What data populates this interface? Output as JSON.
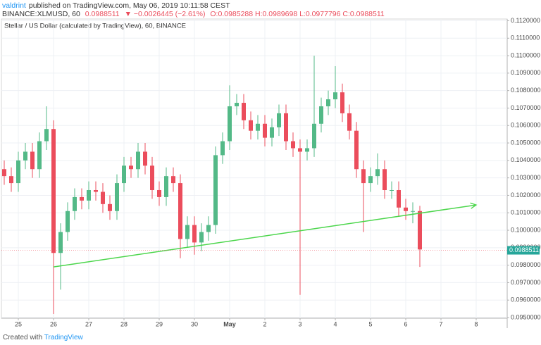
{
  "header": {
    "author": "valdrint",
    "published": "published on TradingView.com, May 06, 2019 10:11:58 CEST",
    "symbol": "BINANCE:XLMUSD, 60",
    "price": "0.0988511",
    "change": "▼ −0.0026445 (−2.61%)",
    "ohlc": "O:0.0985288 H:0.0989698 L:0.0977796 C:0.0988511"
  },
  "footer": {
    "prefix": "Created with",
    "brand": "TradingView"
  },
  "chart_data": {
    "type": "candlestick",
    "title": "Stellar / US Dollar (calculated by TradingView), 60, BINANCE",
    "up_color": "#53b987",
    "down_color": "#eb4d5c",
    "grid": true,
    "xlim": [
      -0.48,
      13.88
    ],
    "ylim": [
      0.09496,
      0.1121
    ],
    "xticks": [
      {
        "value": 0,
        "label": "25"
      },
      {
        "value": 1,
        "label": "26"
      },
      {
        "value": 2,
        "label": "27"
      },
      {
        "value": 3,
        "label": "28"
      },
      {
        "value": 4,
        "label": "29"
      },
      {
        "value": 5,
        "label": "30"
      },
      {
        "value": 6,
        "label": "May"
      },
      {
        "value": 7,
        "label": "2"
      },
      {
        "value": 8,
        "label": "3"
      },
      {
        "value": 9,
        "label": "4"
      },
      {
        "value": 10,
        "label": "5"
      },
      {
        "value": 11,
        "label": "6"
      },
      {
        "value": 12,
        "label": "7"
      },
      {
        "value": 13,
        "label": "8"
      }
    ],
    "yticks": [
      {
        "value": 0.095,
        "label": "0.0950000"
      },
      {
        "value": 0.096,
        "label": "0.0960000"
      },
      {
        "value": 0.097,
        "label": "0.0970000"
      },
      {
        "value": 0.098,
        "label": "0.0980000"
      },
      {
        "value": 0.099,
        "label": "0.0990000"
      },
      {
        "value": 0.1,
        "label": "0.1000000"
      },
      {
        "value": 0.101,
        "label": "0.1010000"
      },
      {
        "value": 0.102,
        "label": "0.1020000"
      },
      {
        "value": 0.103,
        "label": "0.1030000"
      },
      {
        "value": 0.104,
        "label": "0.1040000"
      },
      {
        "value": 0.105,
        "label": "0.1050000"
      },
      {
        "value": 0.106,
        "label": "0.1060000"
      },
      {
        "value": 0.107,
        "label": "0.1070000"
      },
      {
        "value": 0.108,
        "label": "0.1080000"
      },
      {
        "value": 0.109,
        "label": "0.1090000"
      },
      {
        "value": 0.11,
        "label": "0.1100000"
      },
      {
        "value": 0.111,
        "label": "0.1110000"
      },
      {
        "value": 0.112,
        "label": "0.1120000"
      }
    ],
    "last_price": 0.0988511,
    "x": [
      -0.4,
      -0.2,
      0,
      0.2,
      0.4,
      0.6,
      0.8,
      1,
      1.2,
      1.4,
      1.6,
      1.8,
      2,
      2.2,
      2.4,
      2.6,
      2.8,
      3,
      3.2,
      3.4,
      3.6,
      3.8,
      4,
      4.2,
      4.4,
      4.6,
      4.8,
      5,
      5.2,
      5.4,
      5.6,
      5.8,
      6,
      6.2,
      6.4,
      6.6,
      6.8,
      7,
      7.2,
      7.4,
      7.6,
      7.8,
      8,
      8.2,
      8.4,
      8.6,
      8.8,
      9,
      9.2,
      9.4,
      9.6,
      9.8,
      10,
      10.2,
      10.4,
      10.6,
      10.8,
      11,
      11.2,
      11.4
    ],
    "open": [
      0.1035,
      0.1031,
      0.1027,
      0.104,
      0.1045,
      0.1035,
      0.1051,
      0.1058,
      0.0987,
      0.0999,
      0.1011,
      0.1019,
      0.1017,
      0.1023,
      0.1022,
      0.1015,
      0.1011,
      0.1027,
      0.1037,
      0.1035,
      0.1045,
      0.1037,
      0.1023,
      0.1019,
      0.1031,
      0.1027,
      0.0995,
      0.1003,
      0.0993,
      0.0999,
      0.1003,
      0.1043,
      0.1051,
      0.1071,
      0.1073,
      0.1063,
      0.1057,
      0.1061,
      0.1053,
      0.1059,
      0.1067,
      0.1051,
      0.1047,
      0.1045,
      0.1047,
      0.1061,
      0.1071,
      0.1075,
      0.1079,
      0.1067,
      0.1057,
      0.1035,
      0.1027,
      0.1031,
      0.1035,
      0.1023,
      0.1023,
      0.1013,
      0.1011,
      0.1011
    ],
    "high": [
      0.104,
      0.1036,
      0.1045,
      0.105,
      0.105,
      0.1056,
      0.1071,
      0.1063,
      0.1004,
      0.1016,
      0.1024,
      0.1024,
      0.1028,
      0.1028,
      0.1027,
      0.102,
      0.1032,
      0.1042,
      0.1042,
      0.105,
      0.105,
      0.1042,
      0.1028,
      0.1036,
      0.1036,
      0.1032,
      0.1008,
      0.1008,
      0.1004,
      0.1008,
      0.1048,
      0.1056,
      0.1083,
      0.1078,
      0.1078,
      0.1068,
      0.1066,
      0.1066,
      0.1064,
      0.1072,
      0.1072,
      0.1056,
      0.1052,
      0.1052,
      0.11,
      0.1076,
      0.108,
      0.1094,
      0.1084,
      0.1072,
      0.1062,
      0.104,
      0.1036,
      0.1044,
      0.104,
      0.1028,
      0.1028,
      0.1018,
      0.1016,
      0.1014
    ],
    "low": [
      0.1026,
      0.1022,
      0.1022,
      0.1035,
      0.103,
      0.103,
      0.1046,
      0.0952,
      0.0966,
      0.0994,
      0.1006,
      0.1012,
      0.1012,
      0.1017,
      0.101,
      0.1006,
      0.1006,
      0.1022,
      0.103,
      0.103,
      0.1032,
      0.1018,
      0.1014,
      0.1014,
      0.1022,
      0.0984,
      0.099,
      0.0986,
      0.0988,
      0.0994,
      0.0998,
      0.1038,
      0.1046,
      0.1066,
      0.1058,
      0.1052,
      0.1052,
      0.1048,
      0.1048,
      0.1054,
      0.1046,
      0.1042,
      0.0963,
      0.104,
      0.1042,
      0.1056,
      0.1066,
      0.107,
      0.1062,
      0.1052,
      0.103,
      0.0999,
      0.1022,
      0.1026,
      0.1018,
      0.1018,
      0.1008,
      0.1006,
      0.1004,
      0.0979
    ],
    "close": [
      0.1031,
      0.1027,
      0.104,
      0.1045,
      0.1035,
      0.1051,
      0.1058,
      0.0987,
      0.0999,
      0.1011,
      0.1019,
      0.1017,
      0.1023,
      0.1022,
      0.1015,
      0.1011,
      0.1027,
      0.1037,
      0.1035,
      0.1045,
      0.1037,
      0.1023,
      0.1019,
      0.1031,
      0.1027,
      0.0995,
      0.1003,
      0.0993,
      0.0999,
      0.1003,
      0.1043,
      0.1051,
      0.1071,
      0.1073,
      0.1063,
      0.1057,
      0.1061,
      0.1053,
      0.1059,
      0.1067,
      0.1051,
      0.1047,
      0.1045,
      0.1047,
      0.1061,
      0.1071,
      0.1075,
      0.1079,
      0.1067,
      0.1057,
      0.1035,
      0.1027,
      0.1031,
      0.1035,
      0.1023,
      0.1023,
      0.1013,
      0.1011,
      0.1011,
      0.0989
    ],
    "trend_line": {
      "color": "#4cd64c",
      "x": [
        1,
        13
      ],
      "y": [
        0.0979,
        0.10145
      ]
    }
  }
}
